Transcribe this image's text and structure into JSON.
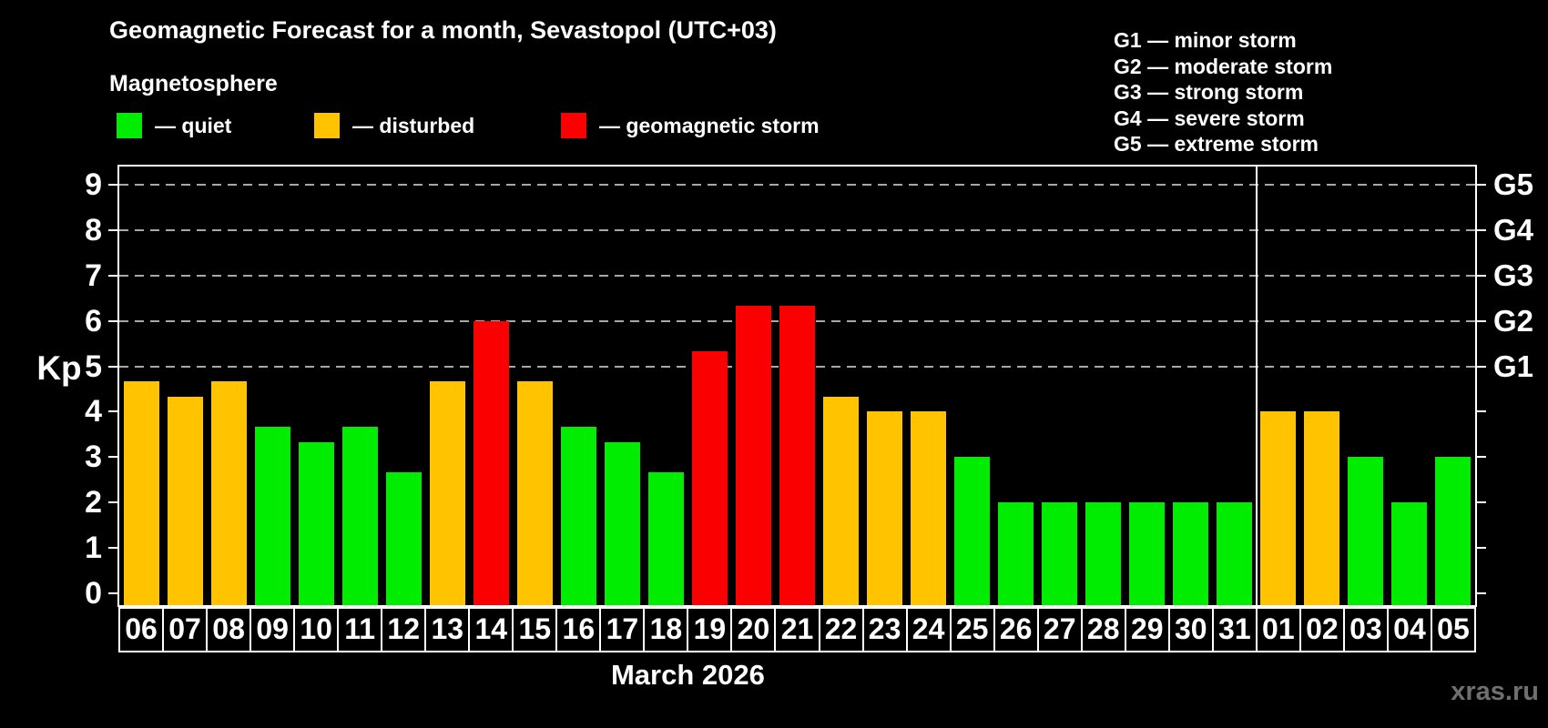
{
  "header": {
    "title": "Geomagnetic Forecast for a month, Sevastopol (UTC+03)",
    "subtitle": "Magnetosphere"
  },
  "legend": {
    "items": [
      {
        "status": "quiet",
        "label": "— quiet"
      },
      {
        "status": "disturbed",
        "label": "— disturbed"
      },
      {
        "status": "storm",
        "label": "— geomagnetic storm"
      }
    ]
  },
  "g_legend": {
    "items": [
      "G1 — minor storm",
      "G2 — moderate storm",
      "G3 — strong storm",
      "G4 — severe storm",
      "G5 — extreme storm"
    ]
  },
  "chart_data": {
    "type": "bar",
    "title": "Geomagnetic Forecast for a month, Sevastopol (UTC+03)",
    "ylabel": "Kp",
    "xlabel": "March 2026",
    "ylim": [
      0,
      9.4
    ],
    "yticks": [
      0,
      1,
      2,
      3,
      4,
      5,
      6,
      7,
      8,
      9
    ],
    "gridlines": [
      5,
      6,
      7,
      8,
      9
    ],
    "grid": "dashed, levels 5-9 only",
    "legend_position": "top-left",
    "categories": [
      "06",
      "07",
      "08",
      "09",
      "10",
      "11",
      "12",
      "13",
      "14",
      "15",
      "16",
      "17",
      "18",
      "19",
      "20",
      "21",
      "22",
      "23",
      "24",
      "25",
      "26",
      "27",
      "28",
      "29",
      "30",
      "31",
      "01",
      "02",
      "03",
      "04",
      "05"
    ],
    "values": [
      4.67,
      4.33,
      4.67,
      3.67,
      3.33,
      3.67,
      2.67,
      4.67,
      6.0,
      4.67,
      3.67,
      3.33,
      2.67,
      5.33,
      6.33,
      6.33,
      4.33,
      4.0,
      4.0,
      3.0,
      2.0,
      2.0,
      2.0,
      2.0,
      2.0,
      2.0,
      4.0,
      4.0,
      3.0,
      2.0,
      3.0
    ],
    "statuses": [
      "disturbed",
      "disturbed",
      "disturbed",
      "quiet",
      "quiet",
      "quiet",
      "quiet",
      "disturbed",
      "storm",
      "disturbed",
      "quiet",
      "quiet",
      "quiet",
      "storm",
      "storm",
      "storm",
      "disturbed",
      "disturbed",
      "disturbed",
      "quiet",
      "quiet",
      "quiet",
      "quiet",
      "quiet",
      "quiet",
      "quiet",
      "disturbed",
      "disturbed",
      "quiet",
      "quiet",
      "quiet"
    ],
    "separator_before_category": "01",
    "right_axis": [
      {
        "kp": 5,
        "label": "G1"
      },
      {
        "kp": 6,
        "label": "G2"
      },
      {
        "kp": 7,
        "label": "G3"
      },
      {
        "kp": 8,
        "label": "G4"
      },
      {
        "kp": 9,
        "label": "G5"
      }
    ]
  },
  "watermark": "xras.ru",
  "colors": {
    "quiet": "#00ec00",
    "disturbed": "#ffc300",
    "storm": "#fb0000",
    "grid": "#a8a8a8",
    "axis": "#ffffff",
    "background": "#000000",
    "watermark": "#6f6f6f"
  }
}
